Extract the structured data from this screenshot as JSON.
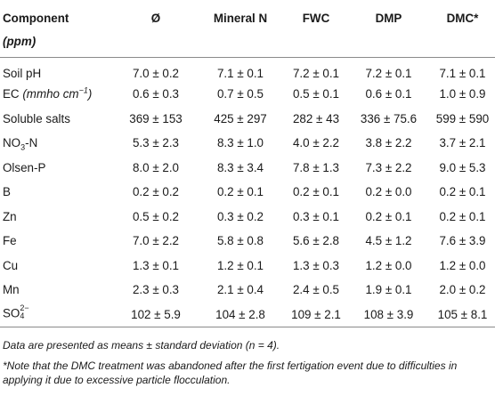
{
  "table": {
    "headers": {
      "component": "Component",
      "unit": "(ppm)",
      "cols": [
        "Ø",
        "Mineral N",
        "FWC",
        "DMP",
        "DMC*"
      ]
    },
    "rows": [
      {
        "label": "Soil pH",
        "values": [
          "7.0 ± 0.2",
          "7.1 ± 0.1",
          "7.2 ± 0.1",
          "7.2 ± 0.1",
          "7.1 ± 0.1"
        ]
      },
      {
        "label": "EC",
        "label_unit": "(mmho cm",
        "label_unit_sup": "−1",
        "label_unit_close": ")",
        "values": [
          "0.6 ± 0.3",
          "0.7 ± 0.5",
          "0.5 ± 0.1",
          "0.6 ± 0.1",
          "1.0 ± 0.9"
        ]
      },
      {
        "label": "Soluble salts",
        "values": [
          "369 ± 153",
          "425 ± 297",
          "282 ± 43",
          "336 ± 75.6",
          "599 ± 590"
        ]
      },
      {
        "label": "NO",
        "label_sub": "3",
        "label_tail": "-N",
        "values": [
          "5.3 ± 2.3",
          "8.3 ± 1.0",
          "4.0 ± 2.2",
          "3.8 ± 2.2",
          "3.7 ± 2.1"
        ]
      },
      {
        "label": "Olsen-P",
        "values": [
          "8.0 ± 2.0",
          "8.3 ± 3.4",
          "7.8 ± 1.3",
          "7.3 ± 2.2",
          "9.0 ± 5.3"
        ]
      },
      {
        "label": "B",
        "values": [
          "0.2 ± 0.2",
          "0.2 ± 0.1",
          "0.2 ± 0.1",
          "0.2 ± 0.0",
          "0.2 ± 0.1"
        ]
      },
      {
        "label": "Zn",
        "values": [
          "0.5 ± 0.2",
          "0.3 ± 0.2",
          "0.3 ± 0.1",
          "0.2 ± 0.1",
          "0.2 ± 0.1"
        ]
      },
      {
        "label": "Fe",
        "values": [
          "7.0 ± 2.2",
          "5.8 ± 0.8",
          "5.6 ± 2.8",
          "4.5 ± 1.2",
          "7.6 ± 3.9"
        ]
      },
      {
        "label": "Cu",
        "values": [
          "1.3 ± 0.1",
          "1.2 ± 0.1",
          "1.3 ± 0.3",
          "1.2 ± 0.0",
          "1.2 ± 0.0"
        ]
      },
      {
        "label": "Mn",
        "values": [
          "2.3 ± 0.3",
          "2.1 ± 0.4",
          "2.4 ± 0.5",
          "1.9 ± 0.1",
          "2.0 ± 0.2"
        ]
      },
      {
        "label": "SO",
        "label_sup": "2−",
        "label_sub": "4",
        "values": [
          "102 ± 5.9",
          "104 ± 2.8",
          "109 ± 2.1",
          "108 ± 3.9",
          "105 ± 8.1"
        ]
      }
    ]
  },
  "notes": {
    "note1": "Data are presented as means ± standard deviation (n = 4).",
    "note2": "*Note that the DMC treatment was abandoned after the first fertigation event due to difficulties in applying it due to excessive particle flocculation."
  }
}
